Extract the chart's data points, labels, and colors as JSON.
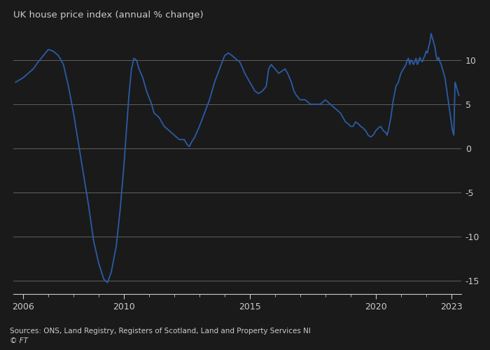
{
  "title": "UK house price index (annual % change)",
  "source": "Sources: ONS, Land Registry, Registers of Scotland, Land and Property Services NI",
  "copyright": "© FT",
  "line_color": "#2a5ca8",
  "bg_color": "#1a1a1a",
  "grid_color": "#555555",
  "text_color": "#cccccc",
  "ylim": [
    -16.5,
    13.5
  ],
  "yticks": [
    -15,
    -10,
    -5,
    0,
    5,
    10
  ],
  "xlim_start": 2005.6,
  "xlim_end": 2023.4,
  "xtick_labels": [
    "2006",
    "2010",
    "2015",
    "2020",
    "2023"
  ],
  "xtick_positions": [
    2006,
    2010,
    2015,
    2020,
    2023
  ],
  "data": [
    [
      2005.7,
      7.5
    ],
    [
      2006.0,
      8.0
    ],
    [
      2006.2,
      8.5
    ],
    [
      2006.4,
      9.0
    ],
    [
      2006.6,
      9.8
    ],
    [
      2006.8,
      10.5
    ],
    [
      2007.0,
      11.2
    ],
    [
      2007.2,
      11.0
    ],
    [
      2007.4,
      10.5
    ],
    [
      2007.6,
      9.5
    ],
    [
      2007.8,
      7.0
    ],
    [
      2008.0,
      4.0
    ],
    [
      2008.2,
      0.5
    ],
    [
      2008.4,
      -3.0
    ],
    [
      2008.6,
      -6.5
    ],
    [
      2008.8,
      -10.5
    ],
    [
      2009.0,
      -13.0
    ],
    [
      2009.2,
      -14.8
    ],
    [
      2009.35,
      -15.2
    ],
    [
      2009.5,
      -14.0
    ],
    [
      2009.7,
      -11.0
    ],
    [
      2009.85,
      -7.0
    ],
    [
      2010.0,
      -2.0
    ],
    [
      2010.1,
      2.0
    ],
    [
      2010.2,
      6.0
    ],
    [
      2010.3,
      9.0
    ],
    [
      2010.4,
      10.2
    ],
    [
      2010.5,
      10.0
    ],
    [
      2010.6,
      9.0
    ],
    [
      2010.75,
      8.0
    ],
    [
      2010.9,
      6.5
    ],
    [
      2011.1,
      5.0
    ],
    [
      2011.2,
      4.0
    ],
    [
      2011.4,
      3.5
    ],
    [
      2011.5,
      3.0
    ],
    [
      2011.6,
      2.5
    ],
    [
      2011.8,
      2.0
    ],
    [
      2012.0,
      1.5
    ],
    [
      2012.2,
      1.0
    ],
    [
      2012.4,
      1.0
    ],
    [
      2012.5,
      0.5
    ],
    [
      2012.6,
      0.2
    ],
    [
      2012.7,
      0.8
    ],
    [
      2012.8,
      1.2
    ],
    [
      2013.0,
      2.5
    ],
    [
      2013.2,
      4.0
    ],
    [
      2013.4,
      5.5
    ],
    [
      2013.6,
      7.5
    ],
    [
      2013.8,
      9.0
    ],
    [
      2014.0,
      10.5
    ],
    [
      2014.15,
      10.8
    ],
    [
      2014.3,
      10.5
    ],
    [
      2014.5,
      10.0
    ],
    [
      2014.6,
      9.8
    ],
    [
      2014.7,
      9.2
    ],
    [
      2014.8,
      8.5
    ],
    [
      2015.0,
      7.5
    ],
    [
      2015.1,
      7.0
    ],
    [
      2015.2,
      6.5
    ],
    [
      2015.35,
      6.2
    ],
    [
      2015.5,
      6.5
    ],
    [
      2015.65,
      7.0
    ],
    [
      2015.75,
      9.0
    ],
    [
      2015.85,
      9.5
    ],
    [
      2016.0,
      9.0
    ],
    [
      2016.15,
      8.5
    ],
    [
      2016.3,
      8.8
    ],
    [
      2016.4,
      9.0
    ],
    [
      2016.5,
      8.5
    ],
    [
      2016.65,
      7.5
    ],
    [
      2016.75,
      6.5
    ],
    [
      2016.85,
      6.0
    ],
    [
      2017.0,
      5.5
    ],
    [
      2017.2,
      5.5
    ],
    [
      2017.4,
      5.0
    ],
    [
      2017.6,
      5.0
    ],
    [
      2017.8,
      5.0
    ],
    [
      2018.0,
      5.5
    ],
    [
      2018.2,
      5.0
    ],
    [
      2018.4,
      4.5
    ],
    [
      2018.6,
      4.0
    ],
    [
      2018.7,
      3.5
    ],
    [
      2018.8,
      3.0
    ],
    [
      2018.9,
      2.8
    ],
    [
      2019.0,
      2.5
    ],
    [
      2019.1,
      2.5
    ],
    [
      2019.2,
      3.0
    ],
    [
      2019.3,
      2.8
    ],
    [
      2019.4,
      2.5
    ],
    [
      2019.5,
      2.3
    ],
    [
      2019.6,
      2.0
    ],
    [
      2019.7,
      1.5
    ],
    [
      2019.8,
      1.3
    ],
    [
      2019.9,
      1.5
    ],
    [
      2020.0,
      2.0
    ],
    [
      2020.1,
      2.3
    ],
    [
      2020.2,
      2.5
    ],
    [
      2020.3,
      2.0
    ],
    [
      2020.4,
      1.8
    ],
    [
      2020.45,
      1.5
    ],
    [
      2020.5,
      2.0
    ],
    [
      2020.6,
      3.5
    ],
    [
      2020.7,
      5.5
    ],
    [
      2020.8,
      7.0
    ],
    [
      2020.9,
      7.5
    ],
    [
      2021.0,
      8.5
    ],
    [
      2021.1,
      9.0
    ],
    [
      2021.2,
      9.5
    ],
    [
      2021.25,
      10.0
    ],
    [
      2021.3,
      10.2
    ],
    [
      2021.35,
      9.5
    ],
    [
      2021.4,
      10.0
    ],
    [
      2021.45,
      9.8
    ],
    [
      2021.5,
      9.5
    ],
    [
      2021.55,
      9.8
    ],
    [
      2021.6,
      10.2
    ],
    [
      2021.65,
      9.5
    ],
    [
      2021.7,
      9.8
    ],
    [
      2021.75,
      10.3
    ],
    [
      2021.8,
      10.0
    ],
    [
      2021.85,
      9.8
    ],
    [
      2021.9,
      10.2
    ],
    [
      2021.95,
      10.5
    ],
    [
      2022.0,
      11.0
    ],
    [
      2022.05,
      10.8
    ],
    [
      2022.1,
      11.5
    ],
    [
      2022.15,
      12.0
    ],
    [
      2022.2,
      13.0
    ],
    [
      2022.25,
      12.5
    ],
    [
      2022.3,
      12.0
    ],
    [
      2022.35,
      11.5
    ],
    [
      2022.4,
      10.5
    ],
    [
      2022.45,
      10.0
    ],
    [
      2022.5,
      10.3
    ],
    [
      2022.55,
      9.8
    ],
    [
      2022.6,
      9.5
    ],
    [
      2022.65,
      9.0
    ],
    [
      2022.7,
      8.5
    ],
    [
      2022.75,
      8.0
    ],
    [
      2022.8,
      7.0
    ],
    [
      2022.85,
      6.0
    ],
    [
      2022.9,
      5.0
    ],
    [
      2022.95,
      4.0
    ],
    [
      2023.0,
      3.0
    ],
    [
      2023.05,
      2.0
    ],
    [
      2023.1,
      1.5
    ],
    [
      2023.15,
      7.5
    ],
    [
      2023.2,
      7.0
    ],
    [
      2023.25,
      6.5
    ],
    [
      2023.3,
      6.0
    ]
  ]
}
